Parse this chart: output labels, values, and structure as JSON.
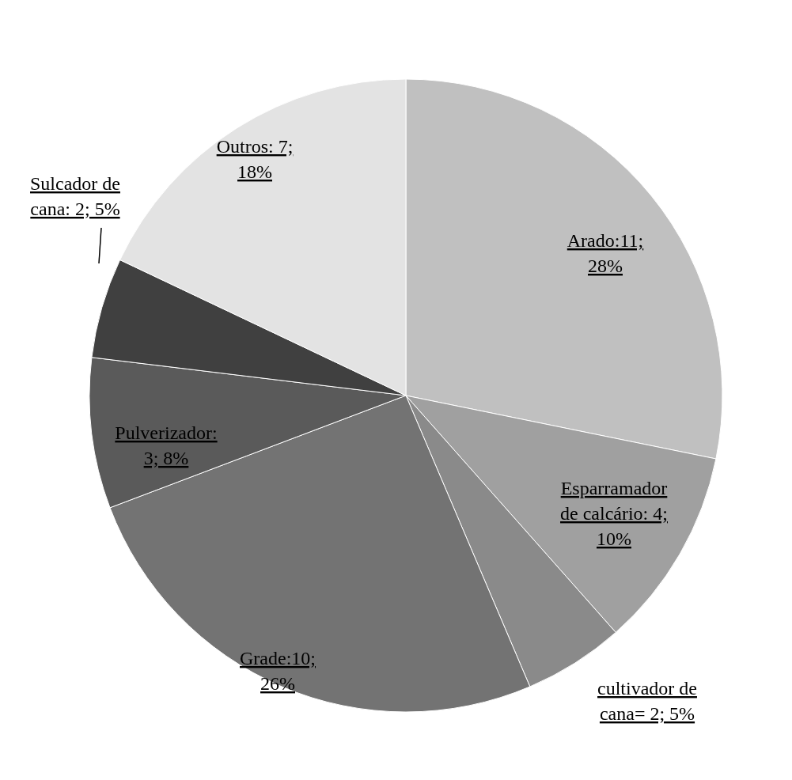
{
  "chart_data": {
    "type": "pie",
    "categories": [
      "Arado:11; 28%",
      "Esparramador de calcário: 4; 10%",
      "cultivador de cana= 2; 5%",
      "Grade:10; 26%",
      "Pulverizador: 3; 8%",
      "Sulcador de cana: 2; 5%",
      "Outros: 7; 18%"
    ],
    "values": [
      11,
      4,
      2,
      10,
      3,
      2,
      7
    ],
    "colors": [
      "#c0c0c0",
      "#a0a0a0",
      "#8a8a8a",
      "#737373",
      "#5a5a5a",
      "#404040",
      "#e3e3e3"
    ]
  }
}
